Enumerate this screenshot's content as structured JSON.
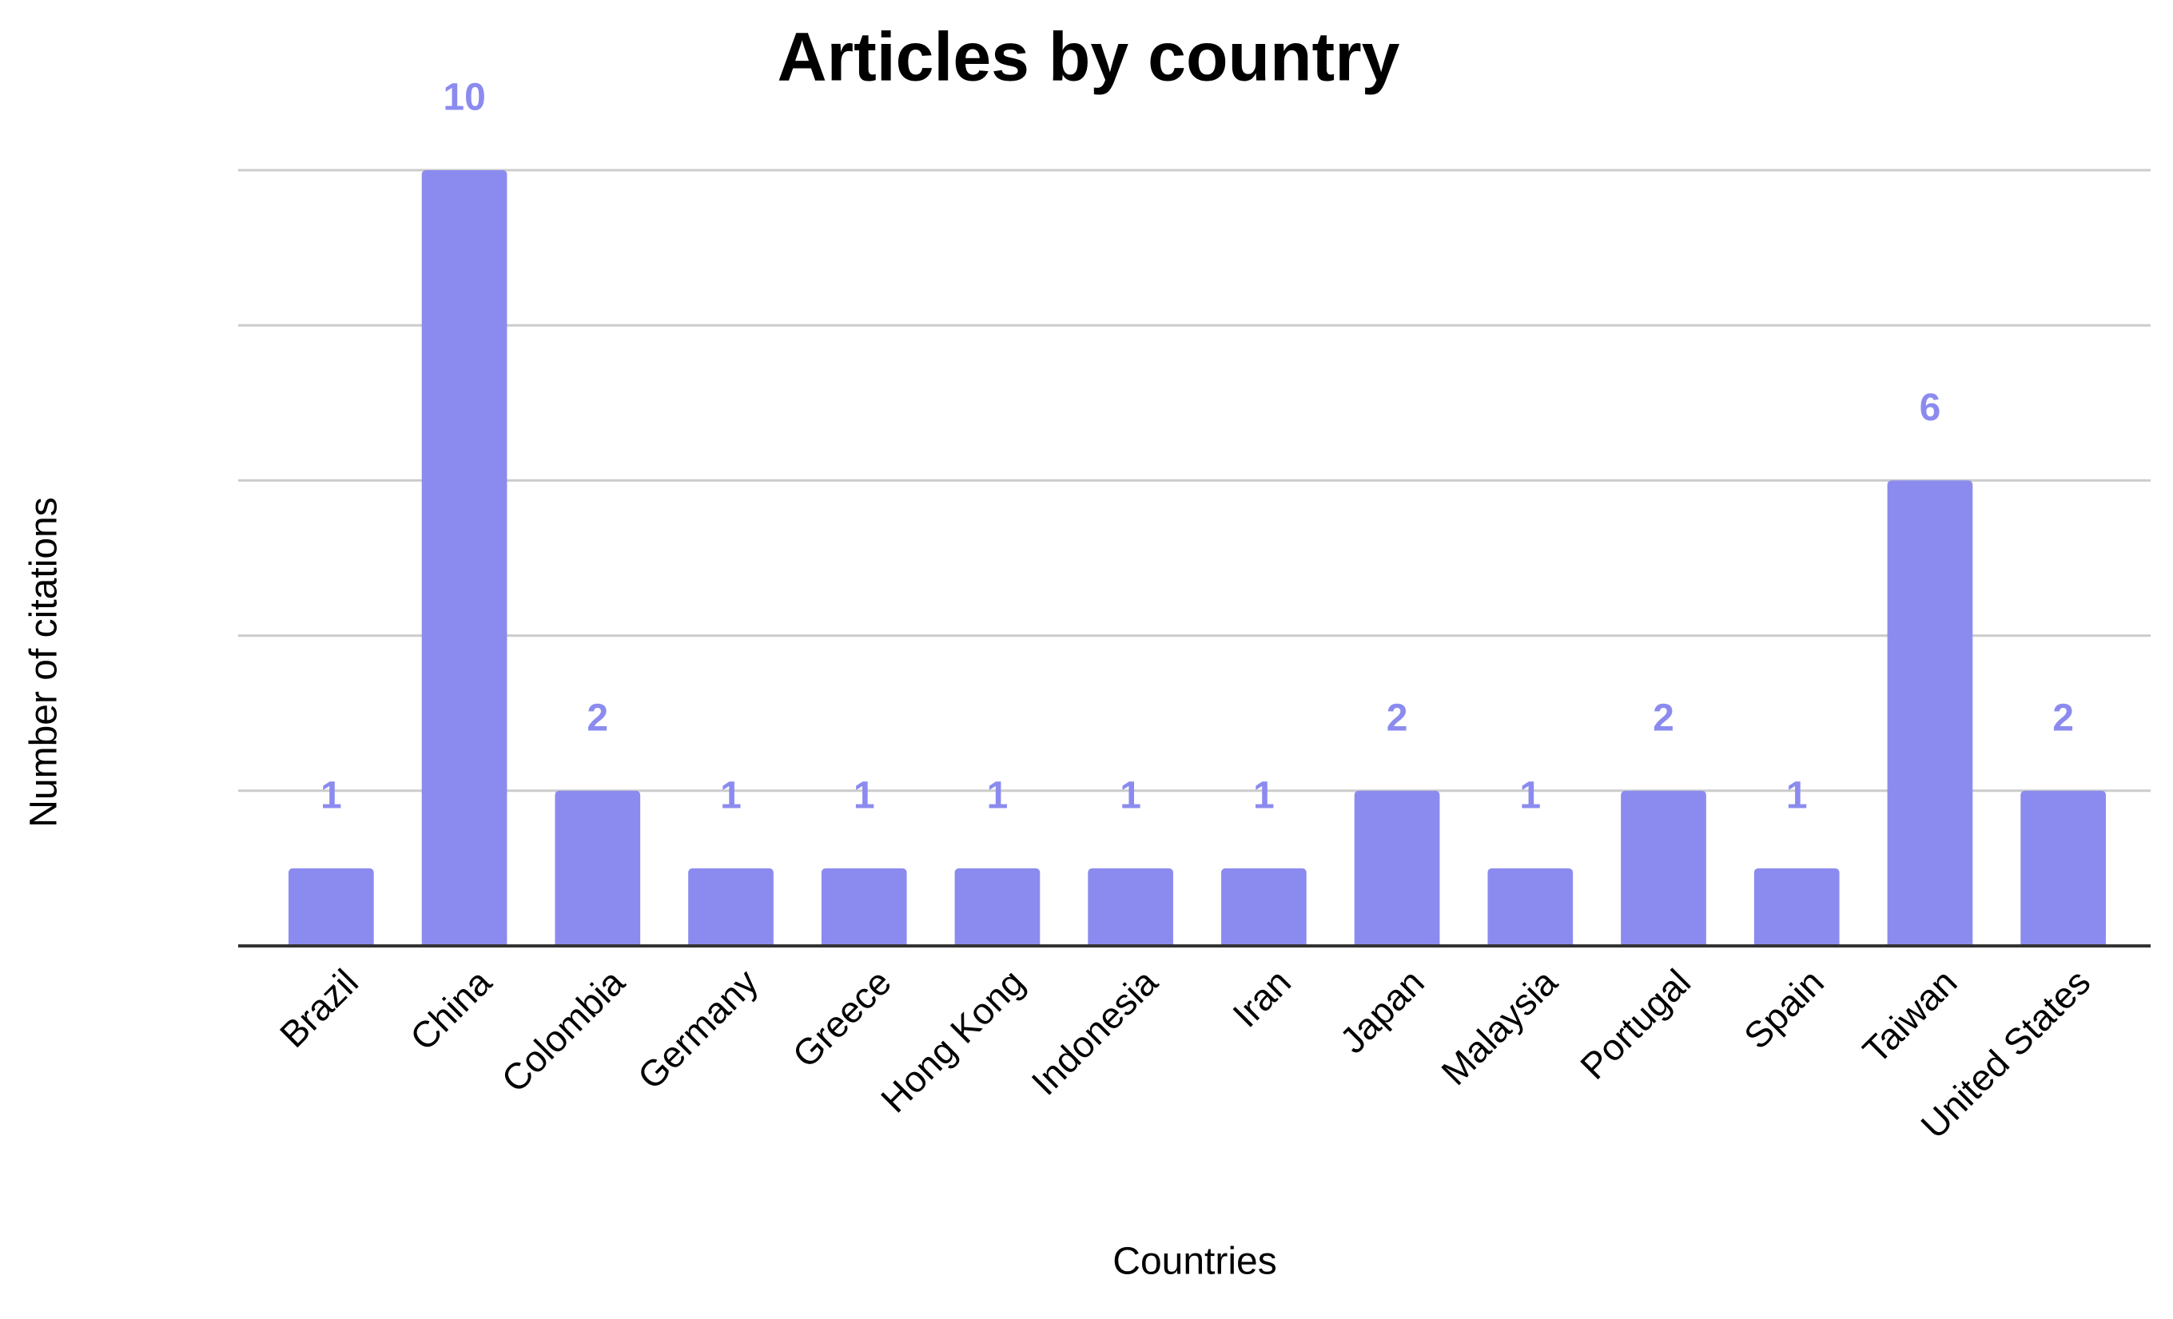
{
  "chart_data": {
    "type": "bar",
    "title": "Articles by country",
    "x_label": "Countries",
    "y_label": "Number of citations",
    "categories": [
      "Brazil",
      "China",
      "Colombia",
      "Germany",
      "Greece",
      "Hong Kong",
      "Indonesia",
      "Iran",
      "Japan",
      "Malaysia",
      "Portugal",
      "Spain",
      "Taiwan",
      "United States"
    ],
    "values": [
      1,
      10,
      2,
      1,
      1,
      1,
      1,
      1,
      2,
      1,
      2,
      1,
      6,
      2
    ],
    "color": "#8b8bef",
    "ylim": [
      0,
      10
    ],
    "yticks": [
      0,
      2,
      4,
      6,
      8,
      10
    ],
    "grid": true
  }
}
